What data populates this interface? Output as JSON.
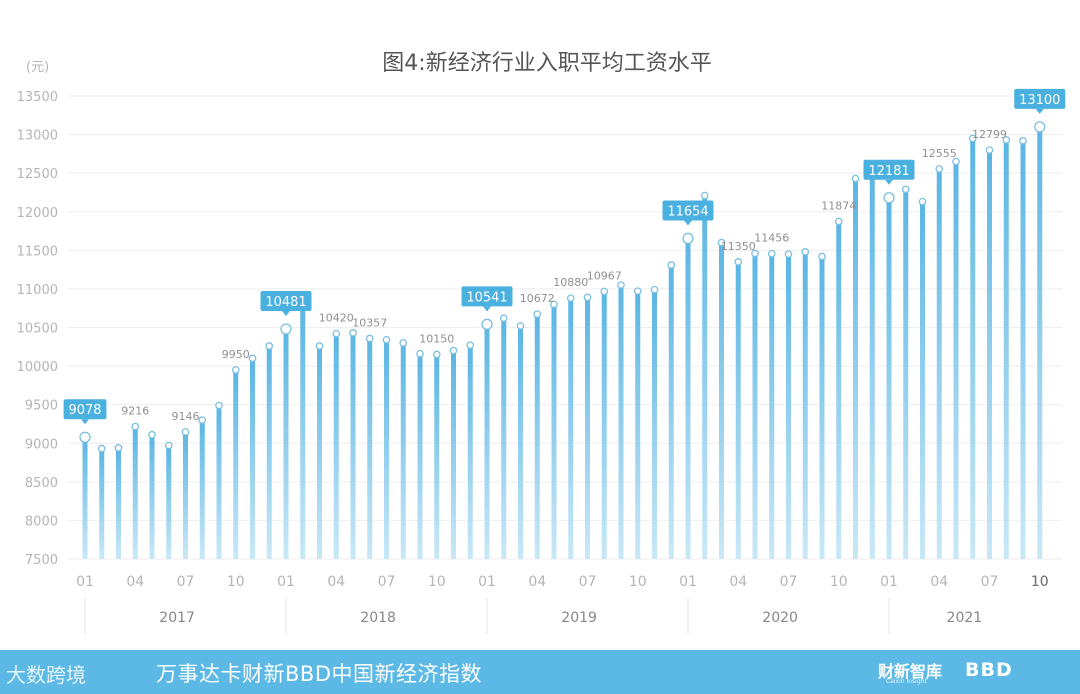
{
  "chart_data": {
    "type": "bar",
    "title": "图4:新经济行业入职平均工资水平",
    "unit_label": "(元)",
    "ylim": [
      7500,
      13500
    ],
    "yticks": [
      7500,
      8000,
      8500,
      9000,
      9500,
      10000,
      10500,
      11000,
      11500,
      12000,
      12500,
      13000,
      13500
    ],
    "x_tick_labels": [
      "01",
      "04",
      "07",
      "10"
    ],
    "years": [
      "2017",
      "2018",
      "2019",
      "2020",
      "2021"
    ],
    "series": [
      {
        "values": [
          9078,
          8930,
          8940,
          9216,
          9110,
          8970,
          9146,
          9300,
          9490,
          9950,
          10100,
          10260,
          10481,
          10770,
          10260,
          10420,
          10430,
          10357,
          10340,
          10300,
          10160,
          10150,
          10200,
          10270,
          10541,
          10620,
          10520,
          10672,
          10800,
          10880,
          10890,
          10967,
          11050,
          10970,
          10990,
          11310,
          11654,
          12210,
          11600,
          11350,
          11460,
          11456,
          11450,
          11480,
          11420,
          11874,
          12430,
          12520,
          12181,
          12290,
          12130,
          12555,
          12650,
          12950,
          12799,
          12930,
          12920,
          13100
        ]
      }
    ],
    "callouts": [
      {
        "index": 0,
        "label": "9078"
      },
      {
        "index": 12,
        "label": "10481"
      },
      {
        "index": 24,
        "label": "10541"
      },
      {
        "index": 36,
        "label": "11654"
      },
      {
        "index": 48,
        "label": "12181"
      },
      {
        "index": 57,
        "label": "13100"
      }
    ],
    "annotations": [
      {
        "index": 3,
        "label": "9216"
      },
      {
        "index": 6,
        "label": "9146"
      },
      {
        "index": 9,
        "label": "9950"
      },
      {
        "index": 15,
        "label": "10420"
      },
      {
        "index": 17,
        "label": "10357"
      },
      {
        "index": 21,
        "label": "10150"
      },
      {
        "index": 27,
        "label": "10672"
      },
      {
        "index": 29,
        "label": "10880"
      },
      {
        "index": 31,
        "label": "10967"
      },
      {
        "index": 39,
        "label": "11350"
      },
      {
        "index": 41,
        "label": "11456"
      },
      {
        "index": 45,
        "label": "11874"
      },
      {
        "index": 51,
        "label": "12555"
      },
      {
        "index": 54,
        "label": "12799"
      }
    ],
    "colors": {
      "bar_top": "#5ab5e3",
      "bar_bottom": "#c9e8f7",
      "callout": "#4ab0e0",
      "grid": "#eeeeee",
      "axis_text": "#b5b5b5",
      "title": "#555555",
      "footer": "#5cb8e4"
    },
    "grid": true
  },
  "footer": {
    "title": "万事达卡财新BBD中国新经济指数",
    "logo_left": "大数跨境",
    "logo_mid": "财新智库",
    "logo_mid_sub": "Caixin Insight",
    "logo_right": "BBD"
  }
}
